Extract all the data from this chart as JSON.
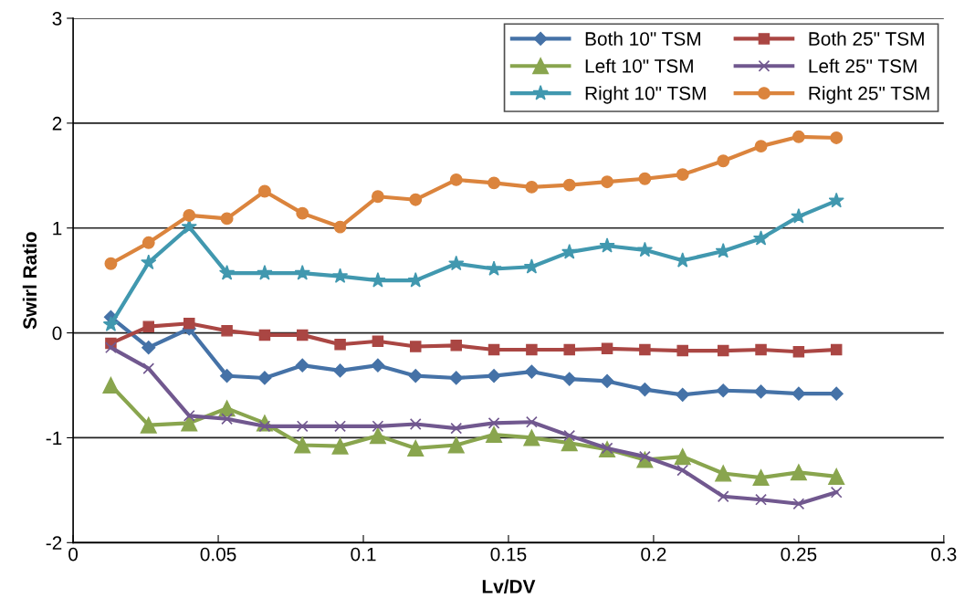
{
  "chart_data": {
    "type": "line",
    "xlabel": "Lv/DV",
    "ylabel": "Swirl Ratio",
    "x": [
      0.013,
      0.026,
      0.04,
      0.053,
      0.066,
      0.079,
      0.092,
      0.105,
      0.118,
      0.132,
      0.145,
      0.158,
      0.171,
      0.184,
      0.197,
      0.21,
      0.224,
      0.237,
      0.25,
      0.263
    ],
    "series": [
      {
        "name": "Both 10\" TSM",
        "color": "#4572a7",
        "marker": "diamond",
        "values": [
          0.15,
          -0.14,
          0.04,
          -0.41,
          -0.43,
          -0.31,
          -0.36,
          -0.31,
          -0.41,
          -0.43,
          -0.41,
          -0.37,
          -0.44,
          -0.46,
          -0.54,
          -0.59,
          -0.55,
          -0.56,
          -0.58,
          -0.58
        ]
      },
      {
        "name": "Both 25\" TSM",
        "color": "#aa4643",
        "marker": "square",
        "values": [
          -0.1,
          0.06,
          0.09,
          0.02,
          -0.02,
          -0.02,
          -0.11,
          -0.08,
          -0.13,
          -0.12,
          -0.16,
          -0.16,
          -0.16,
          -0.15,
          -0.16,
          -0.17,
          -0.17,
          -0.16,
          -0.18,
          -0.16
        ]
      },
      {
        "name": "Left 10\" TSM",
        "color": "#89a54e",
        "marker": "triangle",
        "values": [
          -0.5,
          -0.88,
          -0.86,
          -0.72,
          -0.86,
          -1.07,
          -1.08,
          -0.98,
          -1.1,
          -1.07,
          -0.97,
          -1.0,
          -1.05,
          -1.11,
          -1.21,
          -1.18,
          -1.34,
          -1.38,
          -1.33,
          -1.37
        ]
      },
      {
        "name": "Left 25\" TSM",
        "color": "#71588f",
        "marker": "cross",
        "values": [
          -0.14,
          -0.34,
          -0.79,
          -0.82,
          -0.89,
          -0.89,
          -0.89,
          -0.89,
          -0.87,
          -0.91,
          -0.86,
          -0.85,
          -0.98,
          -1.1,
          -1.18,
          -1.31,
          -1.56,
          -1.59,
          -1.63,
          -1.52
        ]
      },
      {
        "name": "Right 10\" TSM",
        "color": "#4198af",
        "marker": "star",
        "values": [
          0.08,
          0.67,
          1.01,
          0.57,
          0.57,
          0.57,
          0.54,
          0.5,
          0.5,
          0.66,
          0.61,
          0.63,
          0.77,
          0.83,
          0.79,
          0.69,
          0.78,
          0.9,
          1.11,
          1.26
        ]
      },
      {
        "name": "Right 25\" TSM",
        "color": "#db843d",
        "marker": "circle",
        "values": [
          0.66,
          0.86,
          1.12,
          1.09,
          1.35,
          1.14,
          1.01,
          1.3,
          1.27,
          1.46,
          1.43,
          1.39,
          1.41,
          1.44,
          1.47,
          1.51,
          1.64,
          1.78,
          1.87,
          1.86
        ]
      }
    ],
    "xlim": [
      0,
      0.3
    ],
    "xticks": [
      0,
      0.05,
      0.1,
      0.15,
      0.2,
      0.25,
      0.3
    ],
    "ylim": [
      -2,
      3
    ],
    "yticks": [
      -2,
      -1,
      0,
      1,
      2,
      3
    ],
    "grid": "y",
    "legend": "top right"
  }
}
